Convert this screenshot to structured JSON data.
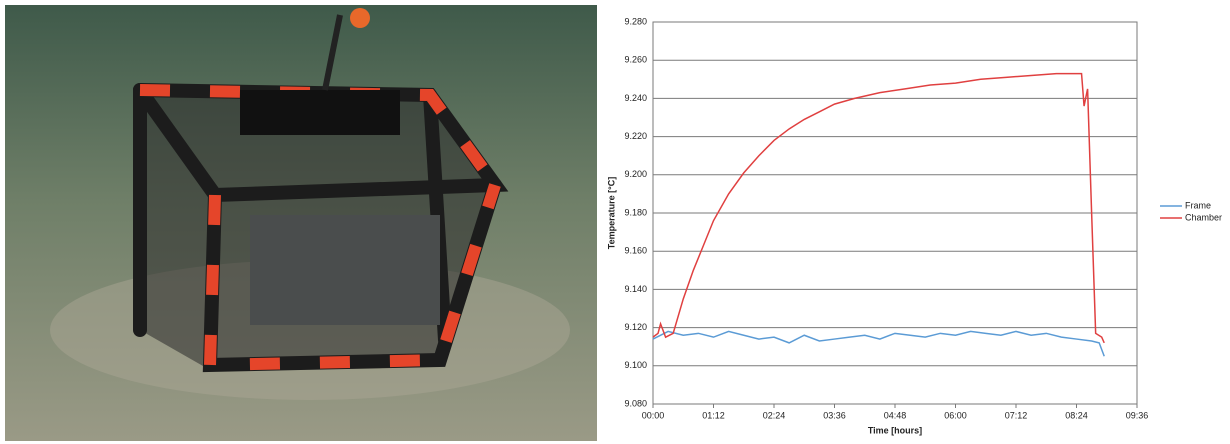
{
  "chart_data": {
    "type": "line",
    "x_label": "Time [hours]",
    "y_label": "Temperature [°C]",
    "xlim": [
      0,
      9.6
    ],
    "xticks": [
      {
        "value": 0,
        "label": "00:00"
      },
      {
        "value": 1.2,
        "label": "01:12"
      },
      {
        "value": 2.4,
        "label": "02:24"
      },
      {
        "value": 3.6,
        "label": "03:36"
      },
      {
        "value": 4.8,
        "label": "04:48"
      },
      {
        "value": 6,
        "label": "06:00"
      },
      {
        "value": 7.2,
        "label": "07:12"
      },
      {
        "value": 8.4,
        "label": "08:24"
      },
      {
        "value": 9.6,
        "label": "09:36"
      }
    ],
    "ylim": [
      9.08,
      9.28
    ],
    "yticks": [
      {
        "value": 9.08,
        "label": "9.080"
      },
      {
        "value": 9.1,
        "label": "9.100"
      },
      {
        "value": 9.12,
        "label": "9.120"
      },
      {
        "value": 9.14,
        "label": "9.140"
      },
      {
        "value": 9.16,
        "label": "9.160"
      },
      {
        "value": 9.18,
        "label": "9.180"
      },
      {
        "value": 9.2,
        "label": "9.200"
      },
      {
        "value": 9.22,
        "label": "9.220"
      },
      {
        "value": 9.24,
        "label": "9.240"
      },
      {
        "value": 9.26,
        "label": "9.260"
      },
      {
        "value": 9.28,
        "label": "9.280"
      }
    ],
    "grid": true,
    "legend": "right",
    "series": [
      {
        "name": "Frame",
        "color": "#5b9bd5",
        "x": [
          0,
          0.3,
          0.6,
          0.9,
          1.2,
          1.5,
          1.8,
          2.1,
          2.4,
          2.7,
          3,
          3.3,
          3.6,
          3.9,
          4.2,
          4.5,
          4.8,
          5.1,
          5.4,
          5.7,
          6,
          6.3,
          6.6,
          6.9,
          7.2,
          7.5,
          7.8,
          8.1,
          8.4,
          8.7,
          8.85,
          8.95
        ],
        "values": [
          9.114,
          9.118,
          9.116,
          9.117,
          9.115,
          9.118,
          9.116,
          9.114,
          9.115,
          9.112,
          9.116,
          9.113,
          9.114,
          9.115,
          9.116,
          9.114,
          9.117,
          9.116,
          9.115,
          9.117,
          9.116,
          9.118,
          9.117,
          9.116,
          9.118,
          9.116,
          9.117,
          9.115,
          9.114,
          9.113,
          9.112,
          9.105
        ]
      },
      {
        "name": "Chamber",
        "color": "#e04040",
        "x": [
          0,
          0.1,
          0.15,
          0.25,
          0.4,
          0.6,
          0.8,
          1,
          1.2,
          1.5,
          1.8,
          2.1,
          2.4,
          2.7,
          3,
          3.3,
          3.6,
          4,
          4.5,
          5,
          5.5,
          6,
          6.5,
          7,
          7.5,
          8,
          8.5,
          8.55,
          8.62,
          8.7,
          8.78,
          8.9,
          8.95
        ],
        "values": [
          9.115,
          9.117,
          9.122,
          9.115,
          9.117,
          9.135,
          9.15,
          9.163,
          9.176,
          9.19,
          9.201,
          9.21,
          9.218,
          9.224,
          9.229,
          9.233,
          9.237,
          9.24,
          9.243,
          9.245,
          9.247,
          9.248,
          9.25,
          9.251,
          9.252,
          9.253,
          9.253,
          9.236,
          9.245,
          9.18,
          9.117,
          9.115,
          9.112
        ]
      }
    ]
  }
}
